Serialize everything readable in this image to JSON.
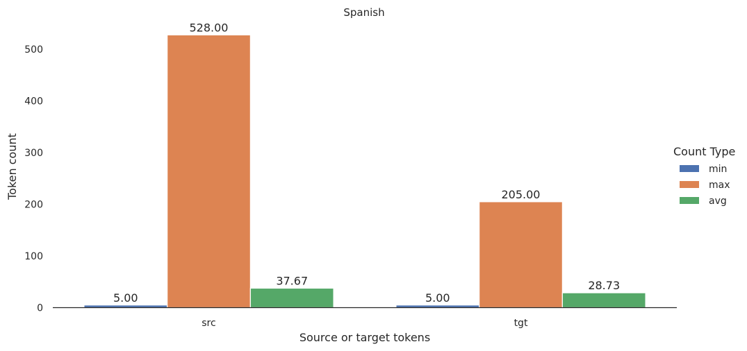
{
  "chart_data": {
    "type": "bar",
    "title": "Spanish",
    "xlabel": "Source or target tokens",
    "ylabel": "Token count",
    "categories": [
      "src",
      "tgt"
    ],
    "series": [
      {
        "name": "min",
        "color": "#4c72b0",
        "values": [
          5.0,
          5.0
        ],
        "labels": [
          "5.00",
          "5.00"
        ]
      },
      {
        "name": "max",
        "color": "#dd8452",
        "values": [
          528.0,
          205.0
        ],
        "labels": [
          "528.00",
          "205.00"
        ]
      },
      {
        "name": "avg",
        "color": "#55a868",
        "values": [
          37.67,
          28.73
        ],
        "labels": [
          "37.67",
          "28.73"
        ]
      }
    ],
    "ylim": [
      0,
      554
    ],
    "yticks": [
      0,
      100,
      200,
      300,
      400,
      500
    ],
    "ytick_labels": [
      "0",
      "100",
      "200",
      "300",
      "400",
      "500"
    ],
    "grid": false,
    "legend": {
      "title": "Count Type",
      "placement": "right"
    }
  }
}
